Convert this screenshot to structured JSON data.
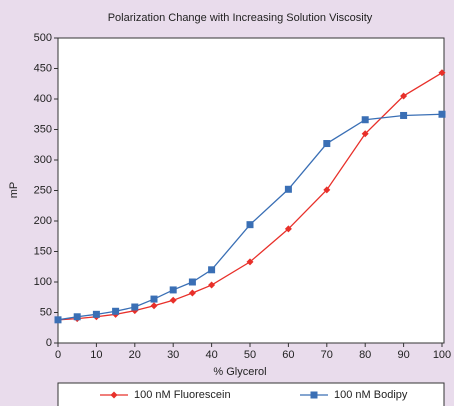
{
  "chart_data": {
    "type": "line",
    "title": "Polarization Change with Increasing Solution Viscosity",
    "x_label": "% Glycerol",
    "y_label": "mP",
    "x": [
      0,
      5,
      10,
      15,
      20,
      25,
      30,
      35,
      40,
      50,
      60,
      70,
      80,
      90,
      100
    ],
    "series": [
      {
        "name": "100 nM Fluorescein",
        "color": "#e8302a",
        "marker": "diamond",
        "values": [
          38,
          40,
          43,
          47,
          53,
          61,
          70,
          82,
          95,
          133,
          187,
          251,
          343,
          405,
          443
        ]
      },
      {
        "name": "100 nM Bodipy",
        "color": "#3a6fb5",
        "marker": "square",
        "values": [
          38,
          43,
          47,
          52,
          59,
          72,
          87,
          100,
          120,
          194,
          252,
          327,
          366,
          373,
          375
        ]
      }
    ],
    "xlim": [
      0,
      100
    ],
    "xticks": [
      0,
      10,
      20,
      30,
      40,
      50,
      60,
      70,
      80,
      90,
      100
    ],
    "ylim": [
      0,
      500
    ],
    "yticks": [
      0,
      50,
      100,
      150,
      200,
      250,
      300,
      350,
      400,
      450,
      500
    ],
    "grid": false,
    "legend": "bottom"
  }
}
